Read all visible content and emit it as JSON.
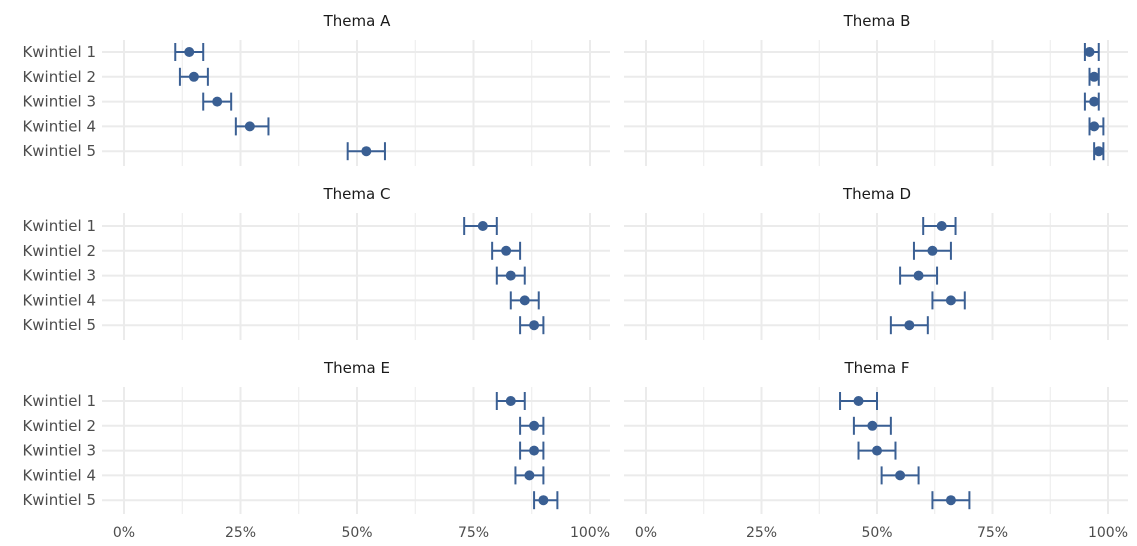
{
  "chart_data": {
    "type": "scatter",
    "subtype": "dot-with-error-bars, facetted",
    "layout": "3 rows x 2 columns",
    "categories": [
      "Kwintiel 1",
      "Kwintiel 2",
      "Kwintiel 3",
      "Kwintiel 4",
      "Kwintiel 5"
    ],
    "x_ticks": [
      "0%",
      "25%",
      "50%",
      "75%",
      "100%"
    ],
    "xlim": [
      0,
      1.05
    ],
    "grid": true,
    "colors": {
      "point": "#3a5f93",
      "grid": "#ebebeb",
      "text": "#4d4d4d"
    },
    "panels": [
      {
        "title": "Thema A",
        "points": [
          {
            "category": "Kwintiel 1",
            "value": 0.14,
            "low": 0.11,
            "high": 0.17
          },
          {
            "category": "Kwintiel 2",
            "value": 0.15,
            "low": 0.12,
            "high": 0.18
          },
          {
            "category": "Kwintiel 3",
            "value": 0.2,
            "low": 0.17,
            "high": 0.23
          },
          {
            "category": "Kwintiel 4",
            "value": 0.27,
            "low": 0.24,
            "high": 0.31
          },
          {
            "category": "Kwintiel 5",
            "value": 0.52,
            "low": 0.48,
            "high": 0.56
          }
        ]
      },
      {
        "title": "Thema B",
        "points": [
          {
            "category": "Kwintiel 1",
            "value": 0.96,
            "low": 0.95,
            "high": 0.98
          },
          {
            "category": "Kwintiel 2",
            "value": 0.97,
            "low": 0.96,
            "high": 0.98
          },
          {
            "category": "Kwintiel 3",
            "value": 0.97,
            "low": 0.95,
            "high": 0.98
          },
          {
            "category": "Kwintiel 4",
            "value": 0.97,
            "low": 0.96,
            "high": 0.99
          },
          {
            "category": "Kwintiel 5",
            "value": 0.98,
            "low": 0.97,
            "high": 0.99
          }
        ]
      },
      {
        "title": "Thema C",
        "points": [
          {
            "category": "Kwintiel 1",
            "value": 0.77,
            "low": 0.73,
            "high": 0.8
          },
          {
            "category": "Kwintiel 2",
            "value": 0.82,
            "low": 0.79,
            "high": 0.85
          },
          {
            "category": "Kwintiel 3",
            "value": 0.83,
            "low": 0.8,
            "high": 0.86
          },
          {
            "category": "Kwintiel 4",
            "value": 0.86,
            "low": 0.83,
            "high": 0.89
          },
          {
            "category": "Kwintiel 5",
            "value": 0.88,
            "low": 0.85,
            "high": 0.9
          }
        ]
      },
      {
        "title": "Thema D",
        "points": [
          {
            "category": "Kwintiel 1",
            "value": 0.64,
            "low": 0.6,
            "high": 0.67
          },
          {
            "category": "Kwintiel 2",
            "value": 0.62,
            "low": 0.58,
            "high": 0.66
          },
          {
            "category": "Kwintiel 3",
            "value": 0.59,
            "low": 0.55,
            "high": 0.63
          },
          {
            "category": "Kwintiel 4",
            "value": 0.66,
            "low": 0.62,
            "high": 0.69
          },
          {
            "category": "Kwintiel 5",
            "value": 0.57,
            "low": 0.53,
            "high": 0.61
          }
        ]
      },
      {
        "title": "Thema E",
        "points": [
          {
            "category": "Kwintiel 1",
            "value": 0.83,
            "low": 0.8,
            "high": 0.86
          },
          {
            "category": "Kwintiel 2",
            "value": 0.88,
            "low": 0.85,
            "high": 0.9
          },
          {
            "category": "Kwintiel 3",
            "value": 0.88,
            "low": 0.85,
            "high": 0.9
          },
          {
            "category": "Kwintiel 4",
            "value": 0.87,
            "low": 0.84,
            "high": 0.9
          },
          {
            "category": "Kwintiel 5",
            "value": 0.9,
            "low": 0.88,
            "high": 0.93
          }
        ]
      },
      {
        "title": "Thema F",
        "points": [
          {
            "category": "Kwintiel 1",
            "value": 0.46,
            "low": 0.42,
            "high": 0.5
          },
          {
            "category": "Kwintiel 2",
            "value": 0.49,
            "low": 0.45,
            "high": 0.53
          },
          {
            "category": "Kwintiel 3",
            "value": 0.5,
            "low": 0.46,
            "high": 0.54
          },
          {
            "category": "Kwintiel 4",
            "value": 0.55,
            "low": 0.51,
            "high": 0.59
          },
          {
            "category": "Kwintiel 5",
            "value": 0.66,
            "low": 0.62,
            "high": 0.7
          }
        ]
      }
    ]
  }
}
